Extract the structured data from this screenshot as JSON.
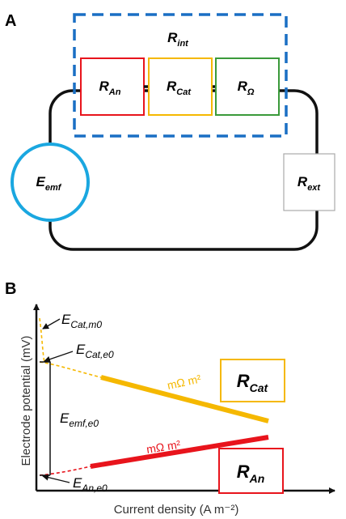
{
  "panel_a": {
    "label": "A",
    "r_int": {
      "main": "R",
      "sub": "int"
    },
    "r_an": {
      "main": "R",
      "sub": "An"
    },
    "r_cat": {
      "main": "R",
      "sub": "Cat"
    },
    "r_omega": {
      "main": "R",
      "sub": "Ω"
    },
    "e_emf": {
      "main": "E",
      "sub": "emf"
    },
    "r_ext": {
      "main": "R",
      "sub": "ext"
    }
  },
  "panel_b": {
    "label": "B",
    "y_axis_label": "Electrode potential (mV)",
    "x_axis_label": "Current density (A m⁻²)",
    "e_cat_m0": {
      "main": "E",
      "sub": "Cat,m0"
    },
    "e_cat_e0": {
      "main": "E",
      "sub": "Cat,e0"
    },
    "e_emf_e0": {
      "main": "E",
      "sub": "emf,e0"
    },
    "e_an_e0": {
      "main": "E",
      "sub": "An,e0"
    },
    "cat_slope": "mΩ m²",
    "an_slope": "mΩ m²",
    "r_cat_box": {
      "main": "R",
      "sub": "Cat"
    },
    "r_an_box": {
      "main": "R",
      "sub": "An"
    }
  },
  "colors": {
    "anode": "#e8141c",
    "cathode": "#f5b800",
    "ohmic": "#3a9a3a",
    "internal_dashed": "#1a6fc4",
    "emf_circle": "#1aa7e0",
    "wire": "#111111"
  }
}
